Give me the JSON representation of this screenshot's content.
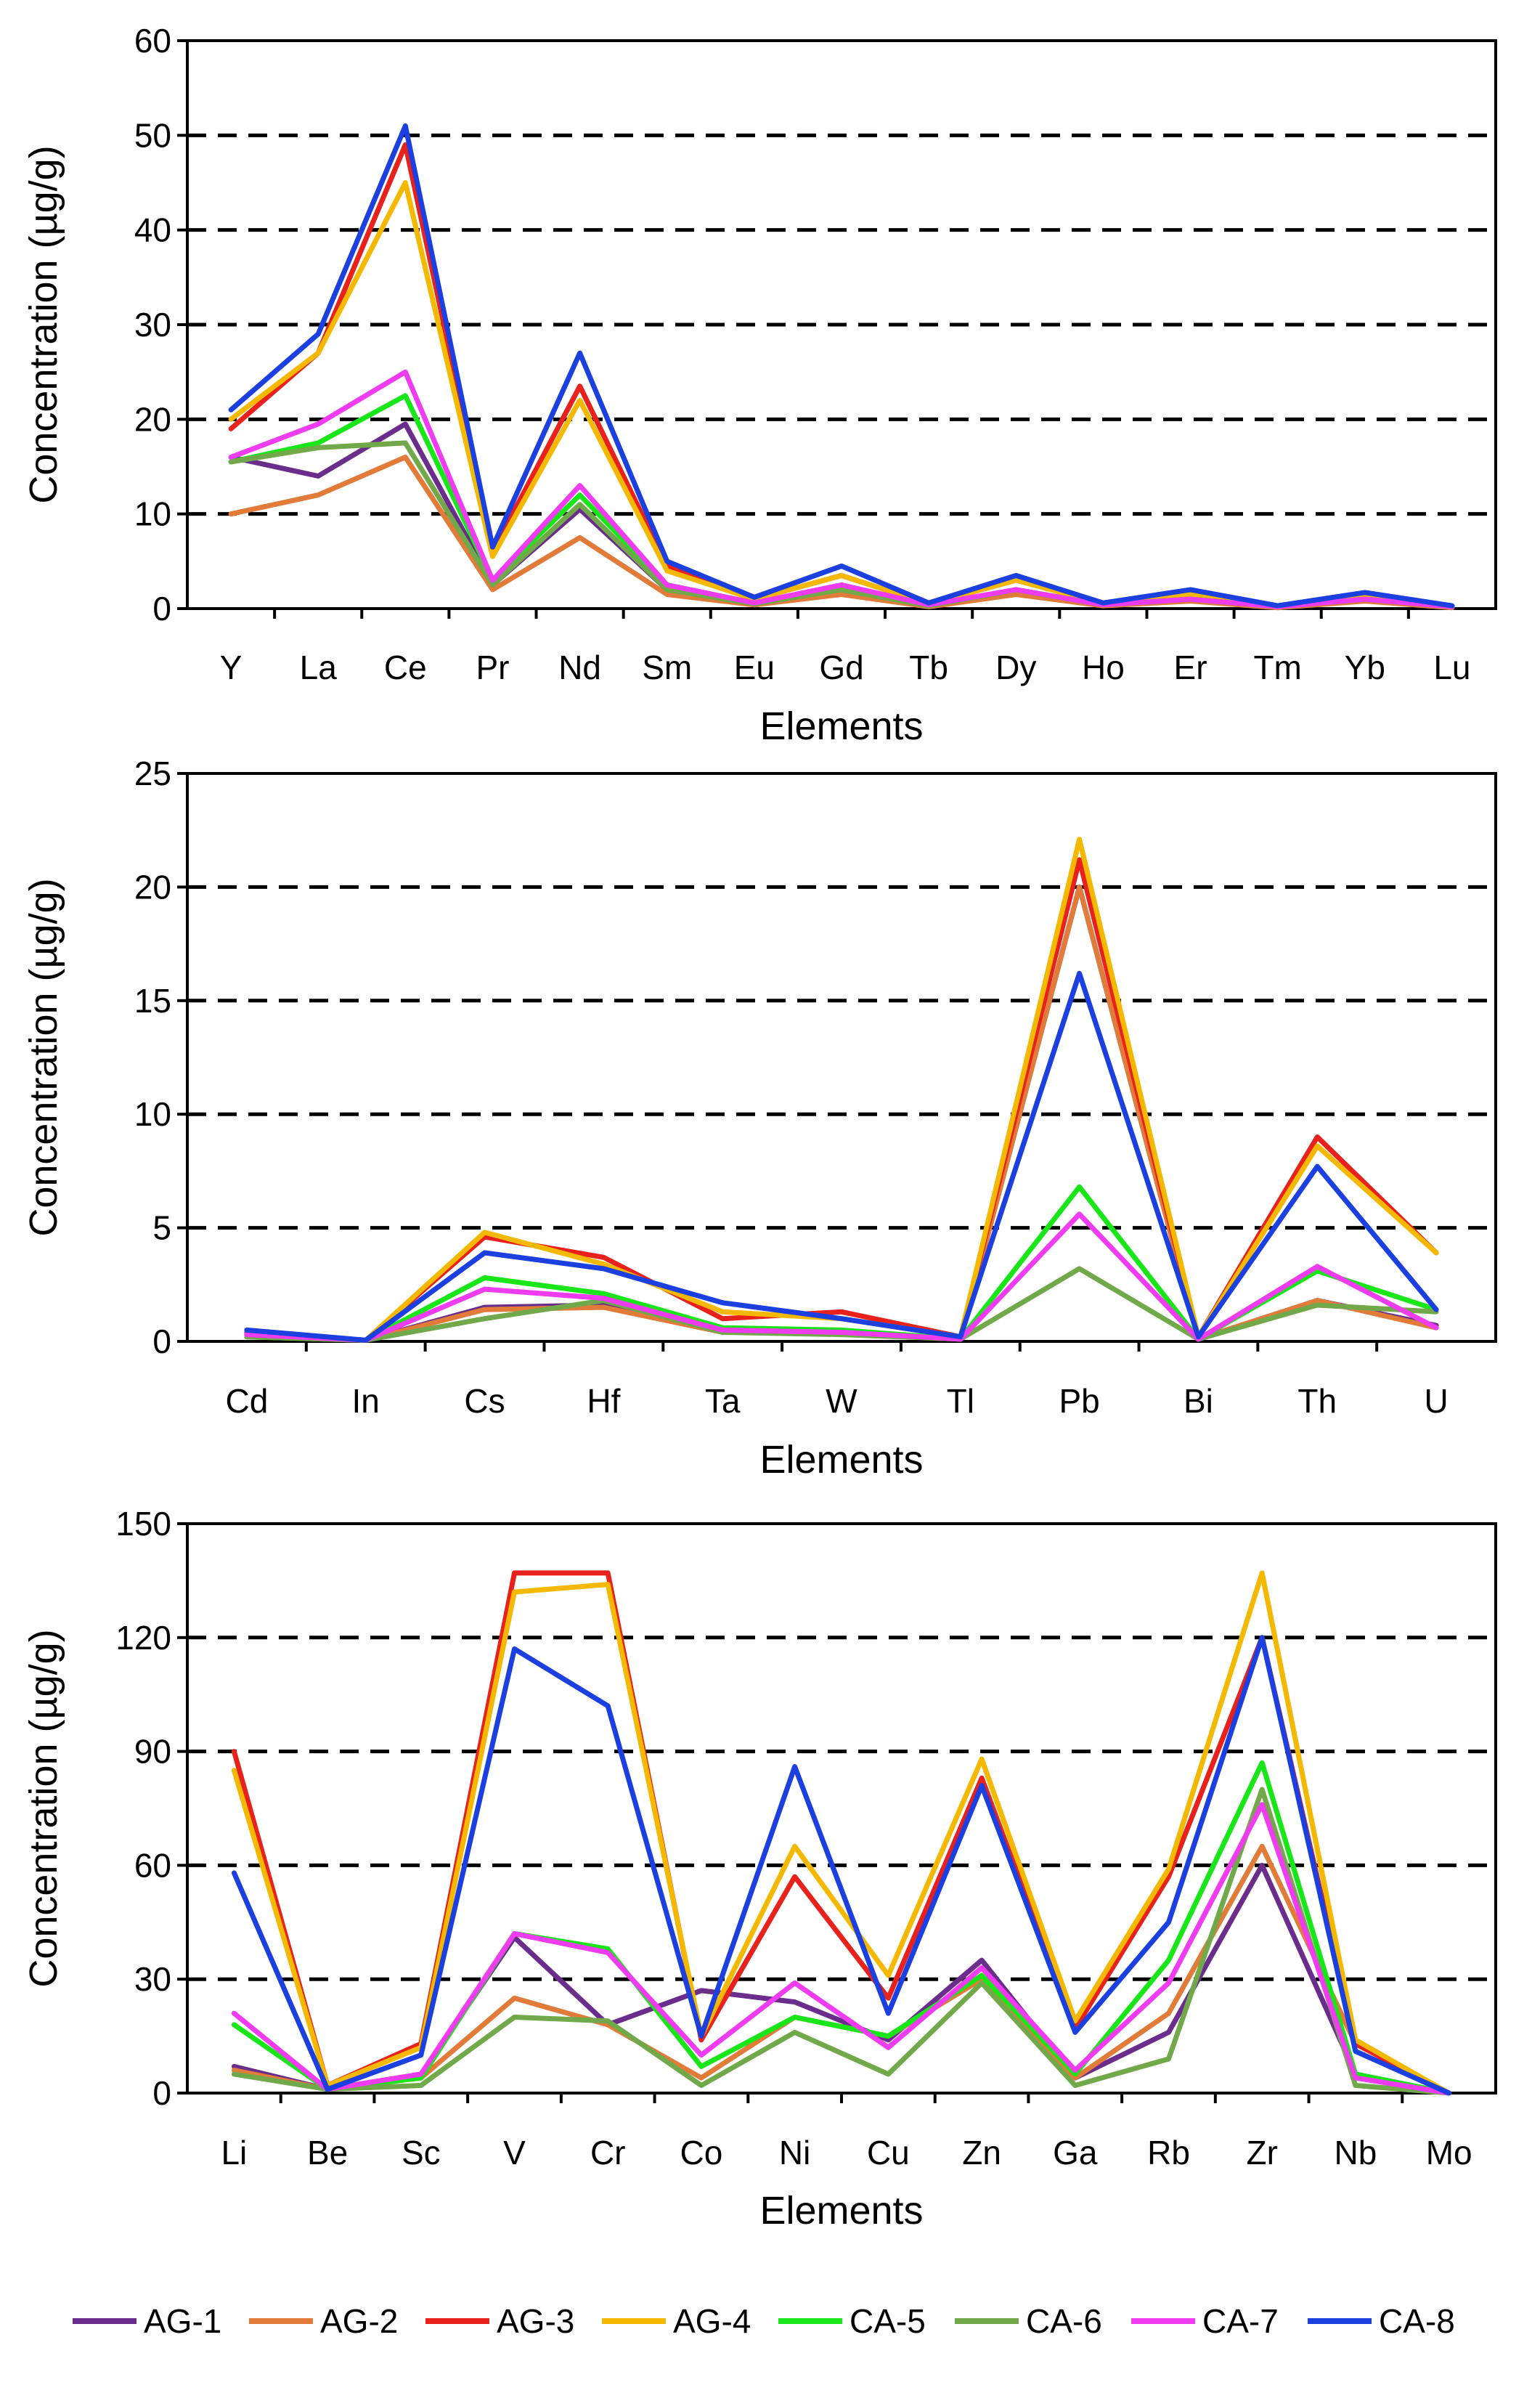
{
  "legend": [
    {
      "name": "AG-1",
      "color": "#6a2d8c"
    },
    {
      "name": "AG-2",
      "color": "#e07b39"
    },
    {
      "name": "AG-3",
      "color": "#e8211c"
    },
    {
      "name": "AG-4",
      "color": "#f5b800"
    },
    {
      "name": "CA-5",
      "color": "#19e619"
    },
    {
      "name": "CA-6",
      "color": "#71a84a"
    },
    {
      "name": "CA-7",
      "color": "#f03cf0"
    },
    {
      "name": "CA-8",
      "color": "#1c3fe0"
    }
  ],
  "chart_data": [
    {
      "type": "line",
      "xlabel": "Elements",
      "ylabel": "Concentration (µg/g)",
      "ylim": [
        0,
        60
      ],
      "yticks": [
        0,
        10,
        20,
        30,
        40,
        50,
        60
      ],
      "gridlines": [
        10,
        20,
        30,
        40,
        50
      ],
      "categories": [
        "Y",
        "La",
        "Ce",
        "Pr",
        "Nd",
        "Sm",
        "Eu",
        "Gd",
        "Tb",
        "Dy",
        "Ho",
        "Er",
        "Tm",
        "Yb",
        "Lu"
      ],
      "series": [
        {
          "name": "AG-1",
          "values": [
            16,
            14,
            19.5,
            2.5,
            10.5,
            2,
            0.5,
            2,
            0.3,
            2,
            0.4,
            1,
            0.2,
            1,
            0.2
          ]
        },
        {
          "name": "AG-2",
          "values": [
            10,
            12,
            16,
            2,
            7.5,
            1.5,
            0.4,
            1.5,
            0.2,
            1.5,
            0.3,
            0.8,
            0.1,
            0.8,
            0.1
          ]
        },
        {
          "name": "AG-3",
          "values": [
            19,
            27,
            49,
            6,
            23.5,
            4.5,
            1,
            3.5,
            0.5,
            3,
            0.6,
            1.5,
            0.2,
            1.3,
            0.2
          ]
        },
        {
          "name": "AG-4",
          "values": [
            20,
            27,
            45,
            5.5,
            22,
            4,
            1,
            3.5,
            0.5,
            3,
            0.5,
            1.5,
            0.2,
            1.3,
            0.2
          ]
        },
        {
          "name": "CA-5",
          "values": [
            15.5,
            17.5,
            22.5,
            3,
            12,
            2.5,
            0.6,
            2,
            0.3,
            2,
            0.4,
            1,
            0.2,
            1,
            0.2
          ]
        },
        {
          "name": "CA-6",
          "values": [
            15.5,
            17,
            17.5,
            2.5,
            11,
            2,
            0.5,
            2,
            0.3,
            2,
            0.4,
            1,
            0.2,
            1,
            0.2
          ]
        },
        {
          "name": "CA-7",
          "values": [
            16,
            19.5,
            25,
            3,
            13,
            2.5,
            0.6,
            2.5,
            0.4,
            2,
            0.4,
            1,
            0.2,
            1,
            0.2
          ]
        },
        {
          "name": "CA-8",
          "values": [
            21,
            29,
            51,
            6.5,
            27,
            5,
            1.2,
            4.5,
            0.6,
            3.5,
            0.6,
            2,
            0.3,
            1.7,
            0.3
          ]
        }
      ]
    },
    {
      "type": "line",
      "xlabel": "Elements",
      "ylabel": "Concentration (µg/g)",
      "ylim": [
        0,
        25
      ],
      "yticks": [
        0,
        5,
        10,
        15,
        20,
        25
      ],
      "gridlines": [
        5,
        10,
        15,
        20
      ],
      "categories": [
        "Cd",
        "In",
        "Cs",
        "Hf",
        "Ta",
        "W",
        "Tl",
        "Pb",
        "Bi",
        "Th",
        "U"
      ],
      "series": [
        {
          "name": "AG-1",
          "values": [
            0.4,
            0.05,
            1.5,
            1.6,
            0.5,
            0.4,
            0.1,
            20,
            0.1,
            1.8,
            0.7
          ]
        },
        {
          "name": "AG-2",
          "values": [
            0.3,
            0.05,
            1.4,
            1.5,
            0.4,
            0.4,
            0.1,
            20,
            0.1,
            1.8,
            0.6
          ]
        },
        {
          "name": "AG-3",
          "values": [
            0.3,
            0.05,
            4.6,
            3.7,
            1.0,
            1.3,
            0.2,
            21.2,
            0.2,
            9.0,
            3.9
          ]
        },
        {
          "name": "AG-4",
          "values": [
            0.3,
            0.05,
            4.8,
            3.4,
            1.3,
            1.0,
            0.2,
            22.1,
            0.2,
            8.6,
            3.9
          ]
        },
        {
          "name": "CA-5",
          "values": [
            0.2,
            0.05,
            2.8,
            2.1,
            0.6,
            0.5,
            0.1,
            6.8,
            0.1,
            3.1,
            1.4
          ]
        },
        {
          "name": "CA-6",
          "values": [
            0.2,
            0.05,
            1.0,
            1.8,
            0.4,
            0.3,
            0.1,
            3.2,
            0.1,
            1.6,
            1.3
          ]
        },
        {
          "name": "CA-7",
          "values": [
            0.3,
            0.05,
            2.3,
            1.9,
            0.5,
            0.4,
            0.1,
            5.6,
            0.1,
            3.3,
            0.6
          ]
        },
        {
          "name": "CA-8",
          "values": [
            0.5,
            0.05,
            3.9,
            3.2,
            1.7,
            1.0,
            0.2,
            16.2,
            0.2,
            7.7,
            1.4
          ]
        }
      ]
    },
    {
      "type": "line",
      "xlabel": "Elements",
      "ylabel": "Concentration (µg/g)",
      "ylim": [
        0,
        150
      ],
      "yticks": [
        0,
        30,
        60,
        90,
        120,
        150
      ],
      "gridlines": [
        30,
        60,
        90,
        120
      ],
      "categories": [
        "Li",
        "Be",
        "Sc",
        "V",
        "Cr",
        "Co",
        "Ni",
        "Cu",
        "Zn",
        "Ga",
        "Rb",
        "Zr",
        "Nb",
        "Mo"
      ],
      "series": [
        {
          "name": "AG-1",
          "values": [
            7,
            1,
            5,
            41,
            18,
            27,
            24,
            14,
            35,
            4,
            16,
            60,
            5,
            0
          ]
        },
        {
          "name": "AG-2",
          "values": [
            6,
            1,
            4,
            25,
            18,
            4,
            20,
            15,
            30,
            4,
            21,
            65,
            13,
            0
          ]
        },
        {
          "name": "AG-3",
          "values": [
            90,
            2,
            13,
            137,
            137,
            14,
            57,
            25,
            83,
            17,
            57,
            120,
            13,
            0
          ]
        },
        {
          "name": "AG-4",
          "values": [
            85,
            2,
            12,
            132,
            134,
            15,
            65,
            31,
            88,
            19,
            59,
            137,
            14,
            0
          ]
        },
        {
          "name": "CA-5",
          "values": [
            18,
            1,
            4,
            42,
            38,
            7,
            20,
            15,
            31,
            5,
            35,
            87,
            5,
            0
          ]
        },
        {
          "name": "CA-6",
          "values": [
            5,
            1,
            2,
            20,
            19,
            2,
            16,
            5,
            29,
            2,
            9,
            80,
            2,
            0
          ]
        },
        {
          "name": "CA-7",
          "values": [
            21,
            1,
            5,
            42,
            37,
            10,
            29,
            12,
            33,
            6,
            29,
            76,
            4,
            0
          ]
        },
        {
          "name": "CA-8",
          "values": [
            58,
            1,
            10,
            117,
            102,
            15,
            86,
            21,
            81,
            16,
            45,
            120,
            11,
            0
          ]
        }
      ]
    }
  ]
}
